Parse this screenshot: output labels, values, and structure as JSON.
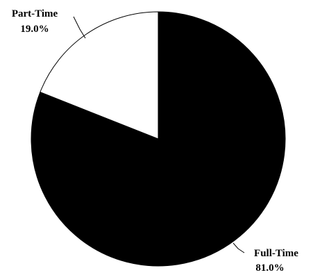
{
  "chart_data": {
    "type": "pie",
    "slices": [
      {
        "label": "Full-Time",
        "value": 81.0,
        "percent_label": "81.0%",
        "color": "#000000"
      },
      {
        "label": "Part-Time",
        "value": 19.0,
        "percent_label": "19.0%",
        "color": "#ffffff"
      }
    ],
    "start_angle_deg": 0,
    "direction": "clockwise",
    "outline_color": "#000000",
    "legend": "none"
  }
}
